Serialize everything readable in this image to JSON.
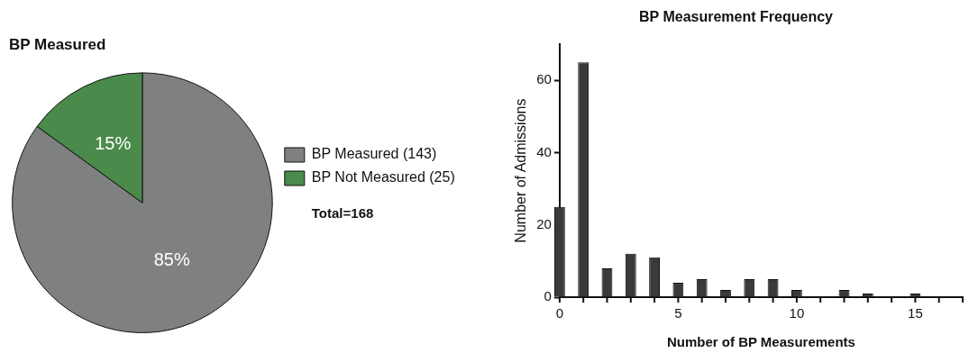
{
  "chart_data": [
    {
      "type": "pie",
      "title": "BP Measured",
      "categories": [
        "BP Measured (143)",
        "BP Not Measured (25)"
      ],
      "values": [
        85,
        15
      ],
      "colors": [
        "#7f8180",
        "#4a8a4a"
      ],
      "value_labels": [
        "85%",
        "15%"
      ],
      "legend": "right",
      "annotations": [
        "Total=168"
      ]
    },
    {
      "type": "bar",
      "title": "BP Measurement Frequency",
      "xlabel": "Number of BP Measurements",
      "ylabel": "Number of Admissions",
      "x": [
        0,
        1,
        2,
        3,
        4,
        5,
        6,
        7,
        8,
        9,
        10,
        11,
        12,
        13,
        14,
        15,
        16
      ],
      "values": [
        25,
        65,
        8,
        12,
        11,
        4,
        5,
        2,
        5,
        5,
        2,
        0,
        2,
        1,
        0,
        1,
        0
      ],
      "color": "#3a3a3a",
      "xlim": [
        0,
        17
      ],
      "xticks": [
        0,
        {
          "value": 1,
          "label": null
        },
        {
          "value": 2,
          "label": null
        },
        {
          "value": 3,
          "label": null
        },
        {
          "value": 4,
          "label": null
        },
        5,
        {
          "value": 6,
          "label": null
        },
        {
          "value": 7,
          "label": null
        },
        {
          "value": 8,
          "label": null
        },
        {
          "value": 9,
          "label": null
        },
        10,
        {
          "value": 11,
          "label": null
        },
        {
          "value": 12,
          "label": null
        },
        {
          "value": 13,
          "label": null
        },
        {
          "value": 14,
          "label": null
        },
        15,
        {
          "value": 16,
          "label": null
        },
        {
          "value": 17,
          "label": null
        }
      ],
      "ylim": [
        0,
        70
      ],
      "yticks": [
        0,
        20,
        40,
        60
      ],
      "grid": false,
      "legend": false
    }
  ]
}
